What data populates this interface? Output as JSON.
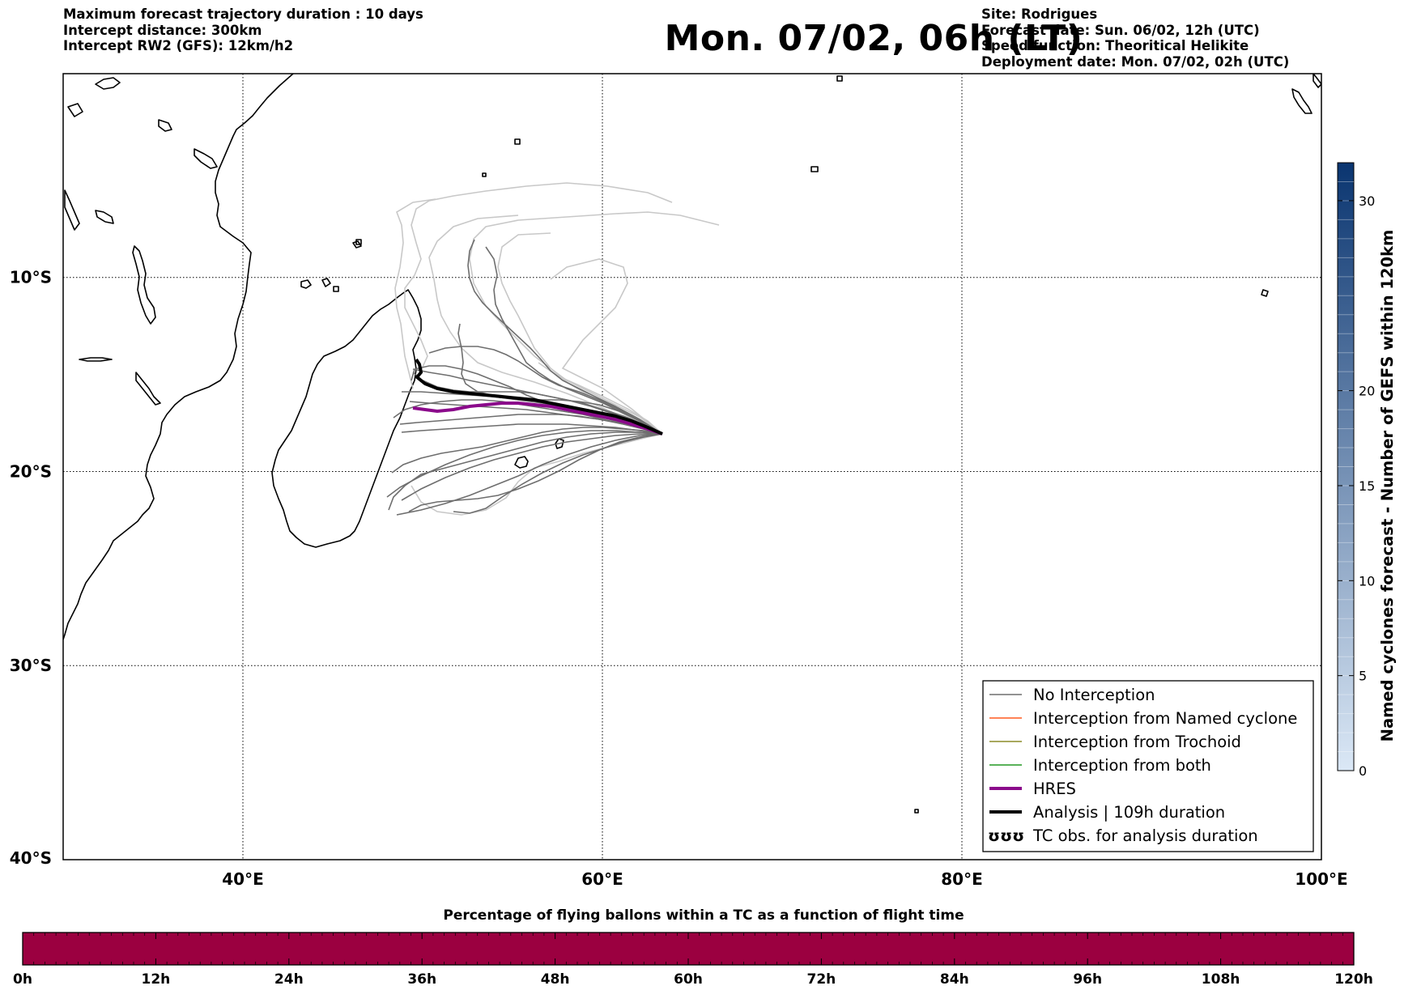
{
  "header": {
    "left_lines": [
      "Maximum forecast trajectory duration : 10 days",
      "Intercept distance: 300km",
      "Intercept RW2 (GFS):  12km/h2"
    ],
    "title": "Mon. 07/02, 06h (LT)",
    "right_lines": [
      "Site: Rodrigues",
      "Forecast date: Sun. 06/02, 12h (UTC)",
      "Speed function: Theoritical Helikite",
      "Deployment date: Mon. 07/02, 02h (UTC)"
    ]
  },
  "map": {
    "lon_range": [
      30,
      100
    ],
    "lat_range": [
      -40,
      0.5
    ],
    "lon_ticks": [
      {
        "value": 40,
        "label": "40°E"
      },
      {
        "value": 60,
        "label": "60°E"
      },
      {
        "value": 80,
        "label": "80°E"
      },
      {
        "value": 100,
        "label": "100°E"
      }
    ],
    "lat_ticks": [
      {
        "value": -10,
        "label": "10°S"
      },
      {
        "value": -20,
        "label": "20°S"
      },
      {
        "value": -30,
        "label": "30°S"
      },
      {
        "value": -40,
        "label": "40°S"
      }
    ],
    "gridlines": true,
    "colors": {
      "no_interception": "#6e6e6e",
      "no_interception_light": "#c4c4c4",
      "named_cyclone": "#ff5a1e",
      "trochoid": "#8c8c28",
      "both": "#229922",
      "hres": "#8b0a8b",
      "analysis": "#000000",
      "coast": "#000000"
    }
  },
  "legend": {
    "position": "lower-right",
    "items": [
      {
        "label": "No Interception",
        "style": "no_interception"
      },
      {
        "label": "Interception from Named cyclone",
        "style": "named_cyclone"
      },
      {
        "label": "Interception from Trochoid",
        "style": "trochoid"
      },
      {
        "label": "Interception from both",
        "style": "both"
      },
      {
        "label": "HRES",
        "style": "hres"
      },
      {
        "label": "Analysis | 109h duration",
        "style": "analysis"
      },
      {
        "label": "TC obs. for analysis duration",
        "style": "tc_obs",
        "symbol": "ʊʊʊ"
      }
    ]
  },
  "colorbar": {
    "label": "Named cyclones forecast - Number of GEFS within 120km",
    "min": 0,
    "max": 32,
    "ticks": [
      "0",
      "5",
      "10",
      "15",
      "20",
      "30"
    ],
    "color_low": "#dbe8f6",
    "color_high": "#0a3570"
  },
  "percentage_bar": {
    "title": "Percentage of flying ballons within a TC as a function of flight time",
    "ticks": [
      "0h",
      "12h",
      "24h",
      "36h",
      "48h",
      "60h",
      "72h",
      "84h",
      "96h",
      "108h",
      "120h"
    ],
    "color": "#9b0040",
    "percent_values": [
      0
    ]
  }
}
